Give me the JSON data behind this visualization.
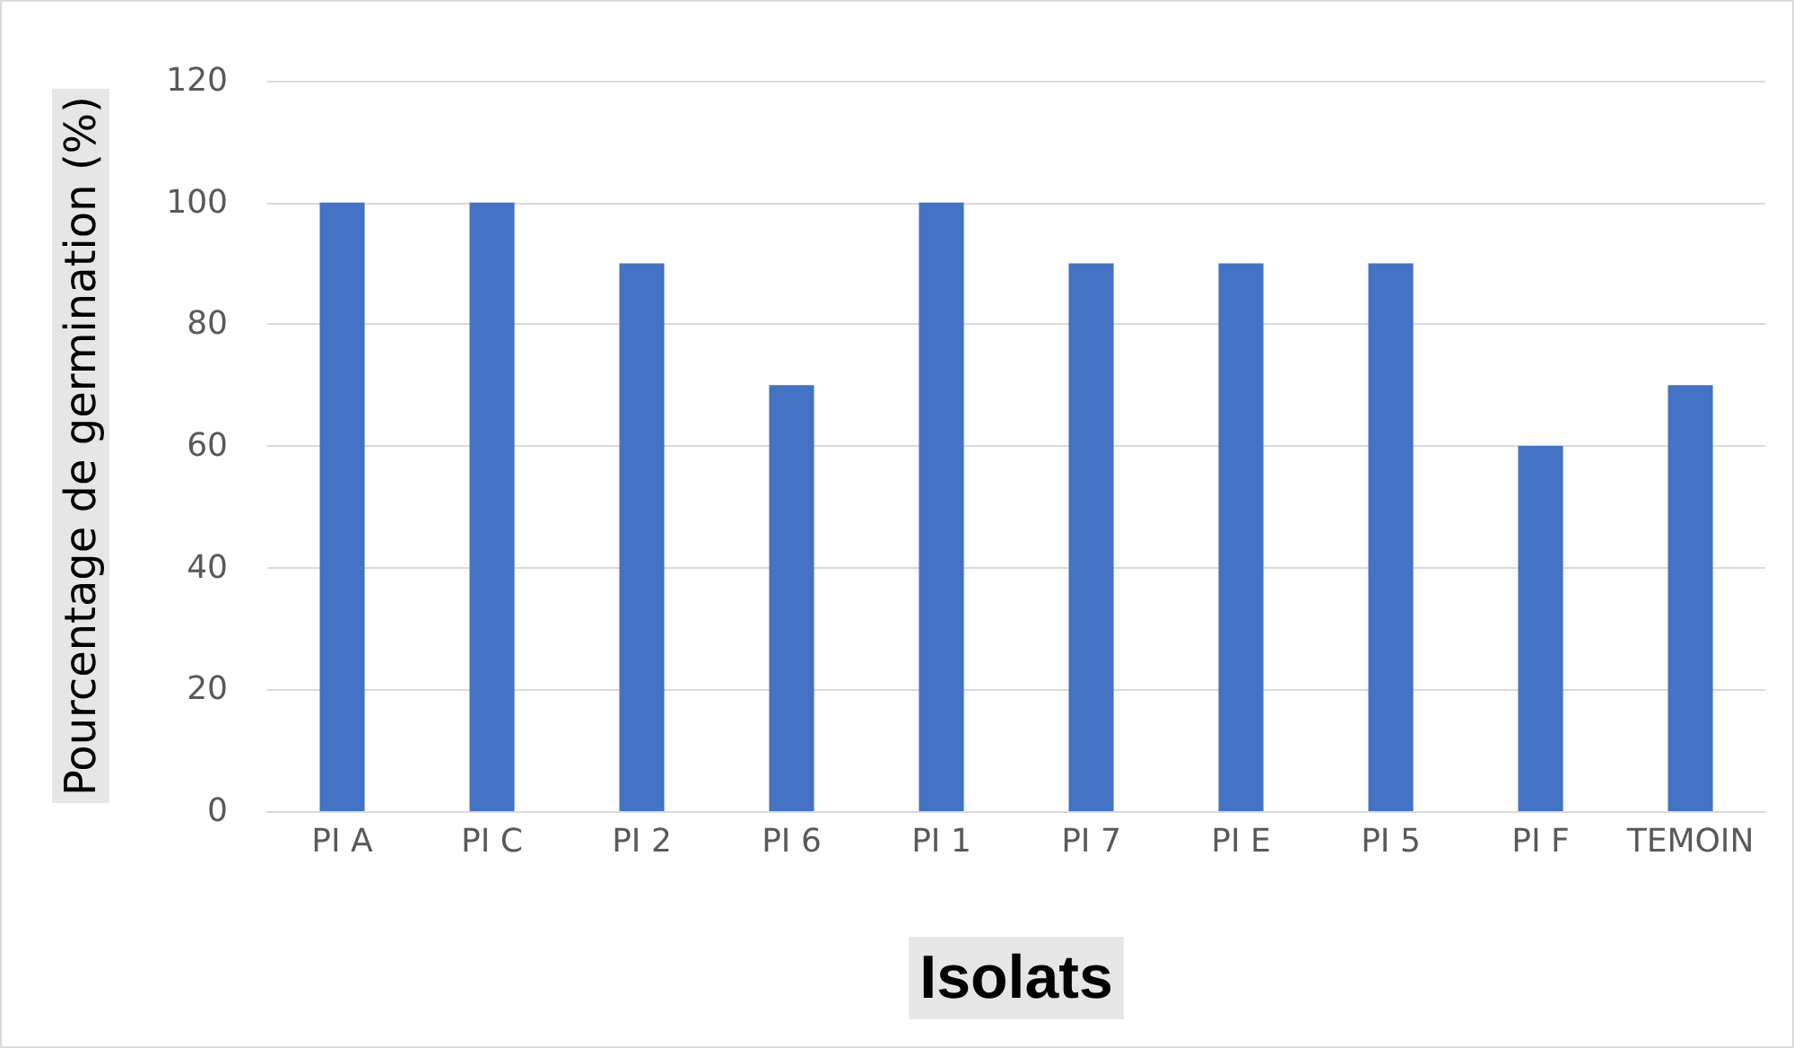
{
  "chart_data": {
    "type": "bar",
    "xlabel": "Isolats",
    "ylabel": "Pourcentage de germination (%)",
    "categories": [
      "PI A",
      "PI C",
      "PI 2",
      "PI 6",
      "PI 1",
      "PI 7",
      "PI E",
      "PI 5",
      "PI F",
      "TEMOIN"
    ],
    "values": [
      100,
      100,
      90,
      70,
      100,
      90,
      90,
      90,
      60,
      70
    ],
    "color": "#4472c4",
    "ylim": [
      0,
      120
    ],
    "yticks": [
      0,
      20,
      40,
      60,
      80,
      100,
      120
    ],
    "grid": "y"
  }
}
